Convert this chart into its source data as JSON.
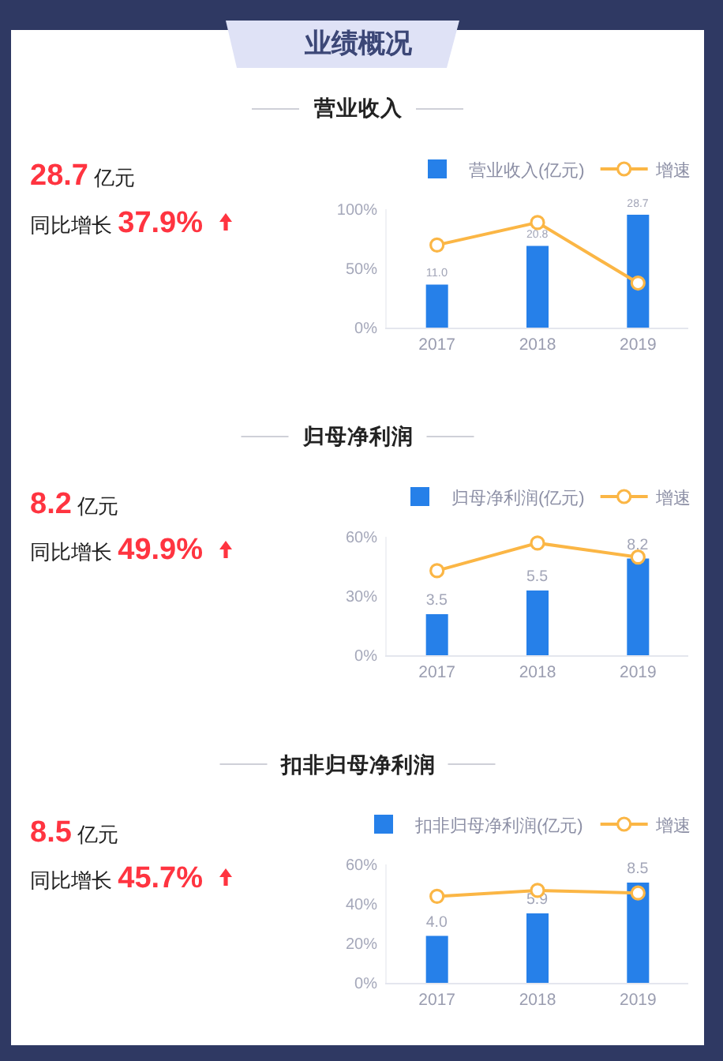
{
  "chart_data": [
    {
      "type": "other",
      "title": "业绩概况"
    },
    {
      "type": "bar",
      "title": "营业收入",
      "categories": [
        "2017",
        "2018",
        "2019"
      ],
      "series": [
        {
          "name": "营业收入(亿元)",
          "type": "bar",
          "axis": "y2",
          "color": "#2680e9",
          "values": [
            11.0,
            20.8,
            28.7
          ],
          "value_labels": [
            "11.0",
            "20.8",
            "28.7"
          ]
        },
        {
          "name": "增速",
          "type": "line",
          "color": "#fbb645",
          "marker": "circle",
          "values": [
            70,
            89,
            37.9
          ]
        }
      ],
      "ylim": [
        0,
        100
      ],
      "yticks": [
        {
          "value": 0,
          "label": "0%"
        },
        {
          "value": 50,
          "label": "50%"
        },
        {
          "value": 100,
          "label": "100%"
        }
      ],
      "y2lim": [
        0,
        30
      ],
      "legend": "top right",
      "annotations": [
        "28.7 亿元",
        "同比增长 37.9%"
      ]
    },
    {
      "type": "bar",
      "title": "归母净利润",
      "categories": [
        "2017",
        "2018",
        "2019"
      ],
      "series": [
        {
          "name": "归母净利润(亿元)",
          "type": "bar",
          "axis": "y2",
          "color": "#2680e9",
          "values": [
            3.5,
            5.5,
            8.2
          ],
          "value_labels": [
            "3.5",
            "5.5",
            "8.2"
          ]
        },
        {
          "name": "增速",
          "type": "line",
          "color": "#fbb645",
          "marker": "circle",
          "values": [
            43,
            57,
            49.9
          ]
        }
      ],
      "ylim": [
        0,
        60
      ],
      "yticks": [
        {
          "value": 0,
          "label": "0%"
        },
        {
          "value": 30,
          "label": "30%"
        },
        {
          "value": 60,
          "label": "60%"
        }
      ],
      "y2lim": [
        0,
        10
      ],
      "legend": "top right",
      "annotations": [
        "8.2 亿元",
        "同比增长 49.9%"
      ]
    },
    {
      "type": "bar",
      "title": "扣非归母净利润",
      "categories": [
        "2017",
        "2018",
        "2019"
      ],
      "series": [
        {
          "name": "扣非归母净利润(亿元)",
          "type": "bar",
          "axis": "y2",
          "color": "#2680e9",
          "values": [
            4.0,
            5.9,
            8.5
          ],
          "value_labels": [
            "4.0",
            "5.9",
            "8.5"
          ]
        },
        {
          "name": "增速",
          "type": "line",
          "color": "#fbb645",
          "marker": "circle",
          "values": [
            44,
            47,
            45.7
          ]
        }
      ],
      "ylim": [
        0,
        60
      ],
      "yticks": [
        {
          "value": 0,
          "label": "0%"
        },
        {
          "value": 20,
          "label": "20%"
        },
        {
          "value": 40,
          "label": "40%"
        },
        {
          "value": 60,
          "label": "60%"
        }
      ],
      "y2lim": [
        0,
        10
      ],
      "legend": "top right",
      "annotations": [
        "8.5 亿元",
        "同比增长 45.7%"
      ]
    }
  ]
}
